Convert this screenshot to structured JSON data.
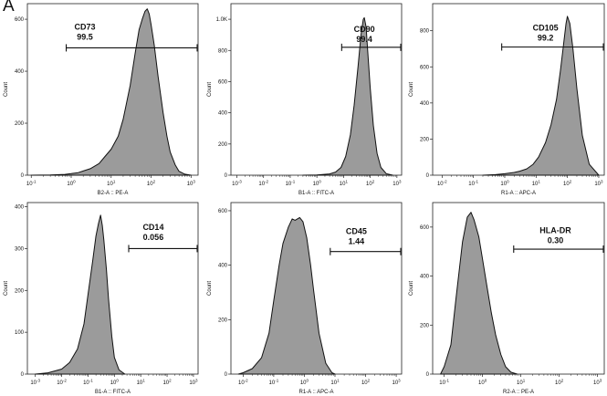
{
  "figure": {
    "panel_letter": "A"
  },
  "chart_data": [
    {
      "type": "area",
      "marker": "CD73",
      "gate_value": "99.5",
      "xlabel": "B2-A :: PE-A",
      "ylabel": "Count",
      "x_scale": "log",
      "xlim": [
        0.08,
        1500
      ],
      "ylim": [
        0,
        660
      ],
      "y_ticks": [
        0,
        200,
        400,
        600
      ],
      "y_tick_labels": [
        "0",
        "200",
        "400",
        "600"
      ],
      "x_ticks": [
        0.1,
        1,
        10,
        100,
        1000
      ],
      "x_tick_labels": [
        "10^-1",
        "10^0",
        "10^1",
        "10^2",
        "10^3"
      ],
      "gate": {
        "x_start": 0.75,
        "x_end": 1500,
        "y": 490
      },
      "gate_label_position": {
        "x": 2.2,
        "y": 560
      },
      "x": [
        0.1,
        0.3,
        0.7,
        1,
        1.5,
        2,
        3,
        5,
        7,
        10,
        15,
        20,
        30,
        40,
        50,
        60,
        70,
        80,
        90,
        100,
        120,
        150,
        200,
        250,
        300,
        400,
        500,
        700,
        1000
      ],
      "counts": [
        0,
        1,
        3,
        6,
        10,
        16,
        25,
        45,
        72,
        100,
        150,
        215,
        345,
        470,
        560,
        600,
        630,
        640,
        620,
        580,
        500,
        380,
        240,
        150,
        90,
        40,
        15,
        4,
        0
      ]
    },
    {
      "type": "area",
      "marker": "CD90",
      "gate_value": "99.4",
      "xlabel": "B1-A :: FITC-A",
      "ylabel": "Count",
      "x_scale": "log",
      "xlim": [
        0.0006,
        1500
      ],
      "ylim": [
        0,
        1100
      ],
      "y_ticks": [
        0,
        200,
        400,
        600,
        800,
        1000
      ],
      "y_tick_labels": [
        "0",
        "200",
        "400",
        "600",
        "800",
        "1.0K"
      ],
      "x_ticks": [
        0.001,
        0.01,
        0.1,
        1,
        10,
        100,
        1000
      ],
      "x_tick_labels": [
        "10^-3",
        "10^-2",
        "10^-1",
        "10^0",
        "10^1",
        "10^2",
        "10^3"
      ],
      "gate": {
        "x_start": 8.5,
        "x_end": 1500,
        "y": 820
      },
      "gate_label_position": {
        "x": 60,
        "y": 920
      },
      "x": [
        0.3,
        1,
        3,
        5,
        8,
        12,
        18,
        25,
        35,
        45,
        55,
        60,
        70,
        80,
        100,
        130,
        180,
        250,
        400,
        700
      ],
      "counts": [
        0,
        2,
        8,
        20,
        50,
        120,
        260,
        450,
        700,
        900,
        1000,
        1010,
        950,
        800,
        560,
        320,
        140,
        50,
        10,
        0
      ]
    },
    {
      "type": "area",
      "marker": "CD105",
      "gate_value": "99.2",
      "xlabel": "R1-A :: APC-A",
      "ylabel": "Count",
      "x_scale": "log",
      "xlim": [
        0.005,
        1500
      ],
      "ylim": [
        0,
        950
      ],
      "y_ticks": [
        0,
        200,
        400,
        600,
        800
      ],
      "y_tick_labels": [
        "0",
        "200",
        "400",
        "600",
        "800"
      ],
      "x_ticks": [
        0.01,
        0.1,
        1,
        10,
        100,
        1000
      ],
      "x_tick_labels": [
        "10^-2",
        "10^-1",
        "10^0",
        "10^1",
        "10^2",
        "10^3"
      ],
      "gate": {
        "x_start": 0.8,
        "x_end": 1500,
        "y": 710
      },
      "gate_label_position": {
        "x": 20,
        "y": 800
      },
      "x": [
        0.2,
        0.5,
        1,
        2,
        3,
        5,
        8,
        12,
        20,
        30,
        45,
        60,
        75,
        90,
        100,
        120,
        150,
        200,
        300,
        500,
        1000
      ],
      "counts": [
        0,
        3,
        8,
        15,
        22,
        35,
        60,
        100,
        180,
        280,
        420,
        580,
        720,
        840,
        880,
        840,
        700,
        480,
        220,
        60,
        0
      ]
    },
    {
      "type": "area",
      "marker": "CD14",
      "gate_value": "0.056",
      "xlabel": "B1-A :: FITC-A",
      "ylabel": "Count",
      "x_scale": "log",
      "xlim": [
        0.0005,
        1500
      ],
      "ylim": [
        0,
        410
      ],
      "y_ticks": [
        0,
        100,
        200,
        300,
        400
      ],
      "y_tick_labels": [
        "0",
        "100",
        "200",
        "300",
        "400"
      ],
      "x_ticks": [
        0.001,
        0.01,
        0.1,
        1,
        10,
        100,
        1000
      ],
      "x_tick_labels": [
        "10^-3",
        "10^-2",
        "10^-1",
        "10^0",
        "10^1",
        "10^2",
        "10^3"
      ],
      "gate": {
        "x_start": 3.5,
        "x_end": 1500,
        "y": 300
      },
      "gate_label_position": {
        "x": 30,
        "y": 345
      },
      "x": [
        0.001,
        0.003,
        0.01,
        0.02,
        0.04,
        0.07,
        0.1,
        0.15,
        0.2,
        0.25,
        0.3,
        0.35,
        0.4,
        0.5,
        0.6,
        0.8,
        1,
        1.5,
        2.5
      ],
      "counts": [
        0,
        3,
        12,
        28,
        60,
        120,
        190,
        270,
        330,
        360,
        380,
        355,
        320,
        250,
        180,
        90,
        40,
        10,
        0
      ]
    },
    {
      "type": "area",
      "marker": "CD45",
      "gate_value": "1.44",
      "xlabel": "R1-A :: APC-A",
      "ylabel": "Count",
      "x_scale": "log",
      "xlim": [
        0.004,
        1500
      ],
      "ylim": [
        0,
        630
      ],
      "y_ticks": [
        0,
        200,
        400,
        600
      ],
      "y_tick_labels": [
        "0",
        "200",
        "400",
        "600"
      ],
      "x_ticks": [
        0.01,
        0.1,
        1,
        10,
        100,
        1000
      ],
      "x_tick_labels": [
        "10^-2",
        "10^-1",
        "10^0",
        "10^1",
        "10^2",
        "10^3"
      ],
      "gate": {
        "x_start": 7,
        "x_end": 1500,
        "y": 450
      },
      "gate_label_position": {
        "x": 50,
        "y": 515
      },
      "x": [
        0.007,
        0.01,
        0.02,
        0.04,
        0.07,
        0.1,
        0.15,
        0.2,
        0.3,
        0.4,
        0.5,
        0.7,
        0.9,
        1.2,
        1.6,
        2,
        3,
        5,
        8,
        10
      ],
      "counts": [
        0,
        5,
        20,
        60,
        150,
        270,
        400,
        480,
        540,
        570,
        565,
        575,
        560,
        500,
        400,
        310,
        150,
        40,
        5,
        0
      ]
    },
    {
      "type": "area",
      "marker": "HLA-DR",
      "gate_value": "0.30",
      "xlabel": "R2-A :: PE-A",
      "ylabel": "Count",
      "x_scale": "log",
      "xlim": [
        0.05,
        1500
      ],
      "ylim": [
        0,
        700
      ],
      "y_ticks": [
        0,
        200,
        400,
        600
      ],
      "y_tick_labels": [
        "0",
        "200",
        "400",
        "600"
      ],
      "x_ticks": [
        0.1,
        1,
        10,
        100,
        1000
      ],
      "x_tick_labels": [
        "10^-1",
        "10^0",
        "10^1",
        "10^2",
        "10^3"
      ],
      "gate": {
        "x_start": 6.5,
        "x_end": 1500,
        "y": 510
      },
      "gate_label_position": {
        "x": 80,
        "y": 575
      },
      "x": [
        0.08,
        0.1,
        0.15,
        0.2,
        0.3,
        0.4,
        0.5,
        0.6,
        0.8,
        1,
        1.3,
        1.7,
        2.2,
        3,
        4,
        5.5,
        8
      ],
      "counts": [
        0,
        30,
        120,
        300,
        540,
        640,
        660,
        630,
        560,
        470,
        360,
        250,
        160,
        80,
        30,
        8,
        0
      ]
    }
  ]
}
